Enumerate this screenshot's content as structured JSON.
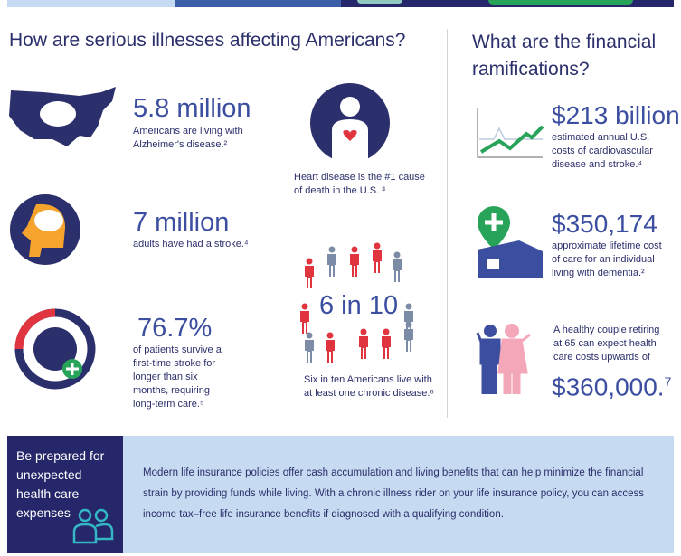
{
  "left": {
    "heading": "How are serious illnesses affecting Americans?",
    "stats": [
      {
        "value": "5.8 million",
        "text": "Americans are living with Alzheimer's disease.²"
      },
      {
        "value": "7 million",
        "text": "adults have had a stroke.⁴"
      },
      {
        "value": "76.7%",
        "text": "of patients survive a first-time stroke for longer than six months, requiring long-term care.⁵"
      }
    ],
    "heart": {
      "text": "Heart disease is the #1 cause of death in the U.S. ³"
    },
    "chronic": {
      "value": "6 in 10",
      "text": "Six in ten Americans live with at least one chronic disease.⁶"
    }
  },
  "right": {
    "heading": "What are the financial ramifications?",
    "stats": [
      {
        "value": "$213 billion",
        "text": "estimated annual U.S. costs of cardiovascular disease and stroke.⁴"
      },
      {
        "value": "$350,174",
        "text": "approximate lifetime cost of care for an individual living with dementia.²"
      },
      {
        "value": "$360,000.",
        "sup": "7",
        "text": "A healthy couple retiring at 65 can expect health care costs upwards of"
      }
    ]
  },
  "footer": {
    "title": "Be prepared for unexpected health care expenses",
    "body": "Modern life insurance policies offer cash accumulation and living benefits that can help minimize the financial strain by providing funds while living. With a chronic illness rider on your life insurance policy, you can access income tax–free life insurance benefits if diagnosed with a qualifying condition."
  },
  "colors": {
    "navy": "#25276a",
    "blue": "#3b4ea0",
    "red": "#e0343f",
    "green": "#27a35a",
    "light": "#c6daf1"
  }
}
